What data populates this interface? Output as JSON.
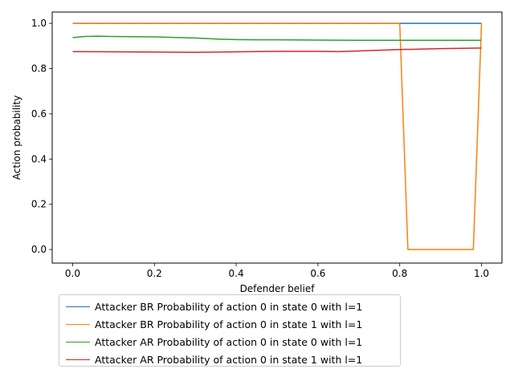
{
  "chart_data": {
    "type": "line",
    "title": "",
    "xlabel": "Defender belief",
    "ylabel": "Action probability",
    "xlim": [
      -0.05,
      1.05
    ],
    "ylim": [
      -0.06,
      1.05
    ],
    "xticks": [
      "0.0",
      "0.2",
      "0.4",
      "0.6",
      "0.8",
      "1.0"
    ],
    "yticks": [
      "0.0",
      "0.2",
      "0.4",
      "0.6",
      "0.8",
      "1.0"
    ],
    "grid": false,
    "legend_position": "below the plot, left",
    "series": [
      {
        "name": "Attacker BR Probability of action 0 in state 0 with l=1",
        "color": "#1f77b4",
        "x": [
          0.0,
          0.2,
          0.4,
          0.6,
          0.8,
          0.82,
          0.9,
          0.98,
          1.0
        ],
        "y": [
          1.0,
          1.0,
          1.0,
          1.0,
          1.0,
          1.0,
          1.0,
          1.0,
          1.0
        ]
      },
      {
        "name": "Attacker BR Probability of action 0 in state 1 with l=1",
        "color": "#ff7f0e",
        "x": [
          0.0,
          0.2,
          0.4,
          0.6,
          0.8,
          0.82,
          0.9,
          0.98,
          1.0
        ],
        "y": [
          1.0,
          1.0,
          1.0,
          1.0,
          1.0,
          0.0,
          0.0,
          0.0,
          1.0
        ]
      },
      {
        "name": "Attacker AR Probability of action 0 in state 0 with l=1",
        "color": "#2ca02c",
        "x": [
          0.0,
          0.03,
          0.06,
          0.1,
          0.2,
          0.3,
          0.36,
          0.4,
          0.45,
          0.5,
          0.6,
          0.7,
          0.8,
          0.9,
          1.0
        ],
        "y": [
          0.937,
          0.942,
          0.943,
          0.942,
          0.94,
          0.935,
          0.93,
          0.928,
          0.927,
          0.927,
          0.926,
          0.925,
          0.925,
          0.925,
          0.925
        ]
      },
      {
        "name": "Attacker AR Probability of action 0 in state 1 with l=1",
        "color": "#d62728",
        "x": [
          0.0,
          0.1,
          0.2,
          0.3,
          0.4,
          0.5,
          0.6,
          0.65,
          0.7,
          0.8,
          0.9,
          1.0
        ],
        "y": [
          0.875,
          0.874,
          0.873,
          0.872,
          0.874,
          0.876,
          0.876,
          0.875,
          0.878,
          0.884,
          0.888,
          0.891
        ]
      }
    ]
  }
}
